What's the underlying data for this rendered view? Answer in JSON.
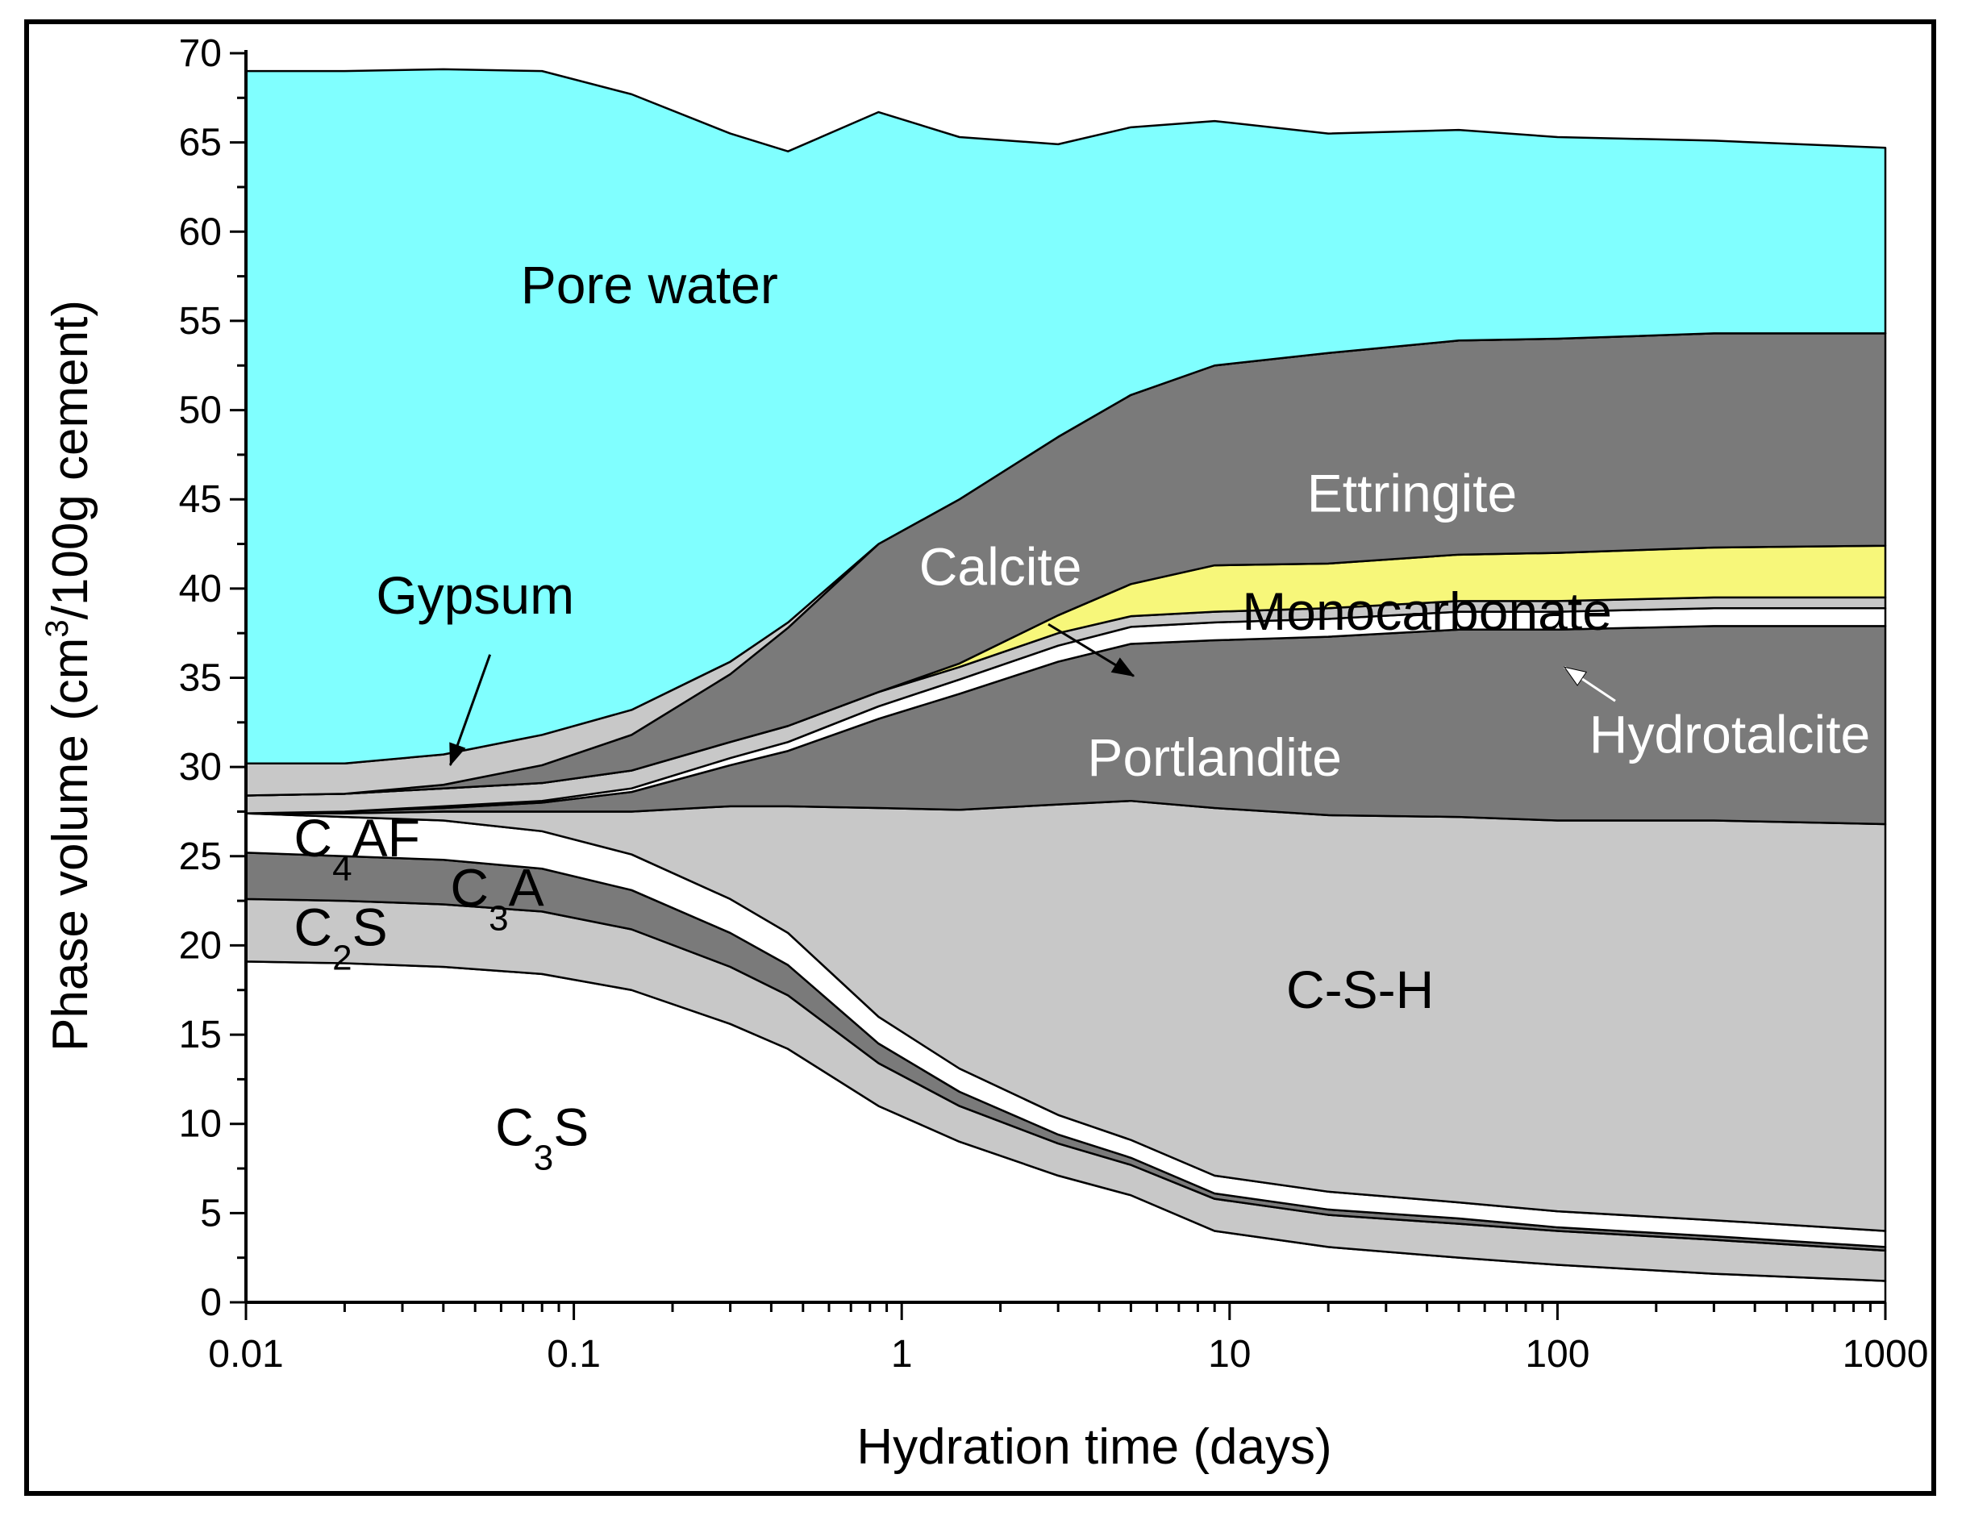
{
  "chart_data": {
    "type": "area",
    "title": "",
    "xlabel": "Hydration time (days)",
    "ylabel": "Phase volume (cm³/100g cement)",
    "ylabel_parts": {
      "before": "Phase volume (cm",
      "sup": "3",
      "after": "/100g cement)"
    },
    "xscale": "log",
    "xlim": [
      0.01,
      1000
    ],
    "ylim": [
      0,
      70
    ],
    "x_ticks": [
      0.01,
      0.1,
      1,
      10,
      100,
      1000
    ],
    "x_tick_labels": [
      "0.01",
      "0.1",
      "1",
      "10",
      "100",
      "1000"
    ],
    "y_ticks": [
      0,
      5,
      10,
      15,
      20,
      25,
      30,
      35,
      40,
      45,
      50,
      55,
      60,
      65,
      70
    ],
    "y_tick_labels": [
      "0",
      "5",
      "10",
      "15",
      "20",
      "25",
      "30",
      "35",
      "40",
      "45",
      "50",
      "55",
      "60",
      "65",
      "70"
    ],
    "x": [
      0.01,
      0.02,
      0.04,
      0.08,
      0.15,
      0.3,
      0.45,
      0.85,
      1.5,
      3,
      5,
      9,
      20,
      50,
      100,
      300,
      1000
    ],
    "series": [
      {
        "name": "C3S",
        "label": "C",
        "label_sub": "3",
        "label_after": "S",
        "color": "#ffffff",
        "values": [
          19.1,
          19.0,
          18.8,
          18.4,
          17.5,
          15.6,
          14.2,
          11.0,
          9.0,
          7.1,
          6.0,
          4.0,
          3.1,
          2.5,
          2.1,
          1.6,
          1.2
        ]
      },
      {
        "name": "C2S",
        "label": "C",
        "label_sub": "2",
        "label_after": "S",
        "color": "#c8c8c8",
        "values": [
          3.5,
          3.5,
          3.5,
          3.5,
          3.4,
          3.2,
          3.0,
          2.4,
          2.0,
          1.8,
          1.7,
          1.8,
          1.8,
          1.9,
          1.9,
          1.9,
          1.7
        ]
      },
      {
        "name": "C3A",
        "label": "C",
        "label_sub": "3",
        "label_after": "A",
        "color": "#7a7a7a",
        "values": [
          2.6,
          2.5,
          2.5,
          2.4,
          2.2,
          1.9,
          1.7,
          1.1,
          0.8,
          0.5,
          0.4,
          0.3,
          0.3,
          0.3,
          0.2,
          0.2,
          0.2
        ]
      },
      {
        "name": "C4AF",
        "label": "C",
        "label_sub": "4",
        "label_after": "AF",
        "color": "#ffffff",
        "values": [
          2.2,
          2.2,
          2.2,
          2.1,
          2.0,
          1.9,
          1.8,
          1.5,
          1.3,
          1.1,
          1.0,
          1.0,
          1.0,
          0.9,
          0.9,
          0.9,
          0.9
        ]
      },
      {
        "name": "C-S-H",
        "label": "C-S-H",
        "color": "#c8c8c8",
        "values": [
          0.0,
          0.2,
          0.5,
          1.1,
          2.4,
          5.2,
          7.1,
          11.7,
          14.5,
          17.4,
          19.0,
          20.6,
          21.1,
          21.6,
          21.9,
          22.4,
          22.8
        ]
      },
      {
        "name": "Portlandite",
        "label": "Portlandite",
        "color": "#7a7a7a",
        "values": [
          0.0,
          0.1,
          0.2,
          0.5,
          1.1,
          2.3,
          3.1,
          5.0,
          6.5,
          8.0,
          8.8,
          9.4,
          10.0,
          10.5,
          10.7,
          10.9,
          11.1
        ]
      },
      {
        "name": "Hydrotalcite",
        "label": "Hydrotalcite",
        "color": "#ffffff",
        "values": [
          0.0,
          0.0,
          0.1,
          0.1,
          0.2,
          0.4,
          0.5,
          0.7,
          0.8,
          0.9,
          0.95,
          1.0,
          1.0,
          1.0,
          1.0,
          1.0,
          1.0
        ]
      },
      {
        "name": "Calcite",
        "label": "Calcite",
        "color": "#c8c8c8",
        "values": [
          1.0,
          1.0,
          1.0,
          1.0,
          1.0,
          0.9,
          0.9,
          0.8,
          0.7,
          0.7,
          0.6,
          0.6,
          0.6,
          0.6,
          0.6,
          0.6,
          0.6
        ]
      },
      {
        "name": "Monocarbonate",
        "label": "Monocarbonate",
        "color": "#f7f77a",
        "values": [
          0.0,
          0.0,
          0.0,
          0.0,
          0.0,
          0.0,
          0.0,
          0.0,
          0.2,
          1.0,
          1.8,
          2.6,
          2.5,
          2.6,
          2.7,
          2.8,
          2.9
        ]
      },
      {
        "name": "Ettringite",
        "label": "Ettringite",
        "color": "#7a7a7a",
        "values": [
          0.0,
          0.0,
          0.2,
          1.0,
          2.0,
          3.8,
          5.5,
          8.3,
          9.2,
          10.0,
          10.6,
          11.2,
          11.8,
          12.0,
          12.0,
          12.0,
          11.9
        ]
      },
      {
        "name": "Gypsum",
        "label": "Gypsum",
        "color": "#c8c8c8",
        "values": [
          1.8,
          1.7,
          1.7,
          1.7,
          1.4,
          0.7,
          0.3,
          0.0,
          0.0,
          0.0,
          0.0,
          0.0,
          0.0,
          0.0,
          0.0,
          0.0,
          0.0
        ]
      },
      {
        "name": "Pore water",
        "label": "Pore water",
        "color": "#80ffff",
        "values": [
          38.8,
          38.8,
          38.4,
          37.2,
          34.5,
          29.6,
          26.4,
          24.2,
          20.3,
          16.4,
          15.0,
          13.7,
          12.3,
          11.8,
          11.3,
          10.8,
          10.4
        ]
      }
    ],
    "annotations": [
      {
        "text": "Gypsum",
        "arrow_to": "Gypsum"
      },
      {
        "text": "Calcite",
        "arrow_to": "Calcite"
      },
      {
        "text": "Hydrotalcite",
        "arrow_to": "Hydrotalcite"
      }
    ],
    "grid": false,
    "legend": "inline-labels"
  }
}
